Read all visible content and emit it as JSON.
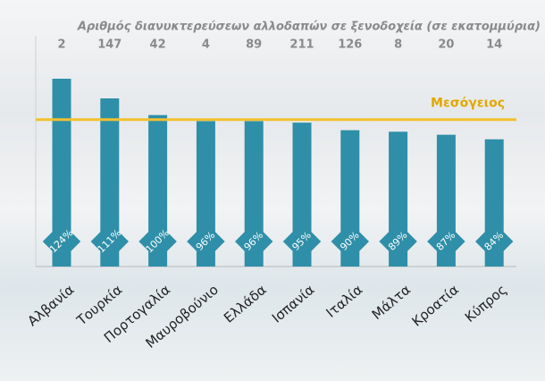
{
  "chart_data": {
    "type": "bar",
    "categories": [
      "Αλβανία",
      "Τουρκία",
      "Πορτογαλία",
      "Μαυροβούνιο",
      "Ελλάδα",
      "Ισπανία",
      "Ιταλία",
      "Μάλτα",
      "Κροατία",
      "Κύπρος"
    ],
    "values": [
      124,
      111,
      100,
      96,
      96,
      95,
      90,
      89,
      87,
      84
    ],
    "value_labels": [
      "124%",
      "111%",
      "100%",
      "96%",
      "96%",
      "95%",
      "90%",
      "89%",
      "87%",
      "84%"
    ],
    "color": "#2f8fa8",
    "stays": {
      "title": "Αριθμός διανυκτερεύσεων αλλοδαπών σε ξενοδοχεία (σε εκατομμύρια)",
      "values": [
        2,
        147,
        42,
        4,
        89,
        211,
        126,
        8,
        20,
        14
      ]
    },
    "reference_line": {
      "label": "Μεσόγειος",
      "value": 97,
      "color": "#f2c12e"
    }
  }
}
